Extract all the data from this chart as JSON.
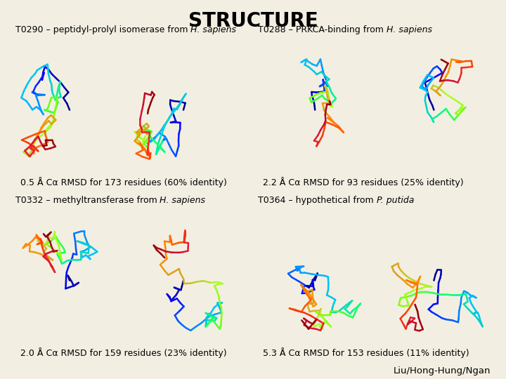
{
  "title": "STRUCTURE",
  "title_fontsize": 20,
  "bg_color": "#f2efe2",
  "panel_labels": [
    "T0290 – peptidyl-prolyl isomerase from ",
    "T0288 – PRKCA-binding from ",
    "T0332 – methyltransferase from ",
    "T0364 – hypothetical from "
  ],
  "italic_parts": [
    "H. sapiens",
    "H. sapiens",
    "H. sapiens",
    "P. putida"
  ],
  "captions": [
    "0.5 Å Cα RMSD for 173 residues (60% identity)",
    "2.2 Å Cα RMSD for 93 residues (25% identity)",
    "2.0 Å Cα RMSD for 159 residues (23% identity)",
    "5.3 Å Cα RMSD for 153 residues (11% identity)"
  ],
  "credit": "Liu/Hong-Hung/Ngan",
  "label_fontsize": 9,
  "caption_fontsize": 9,
  "credit_fontsize": 9.5
}
